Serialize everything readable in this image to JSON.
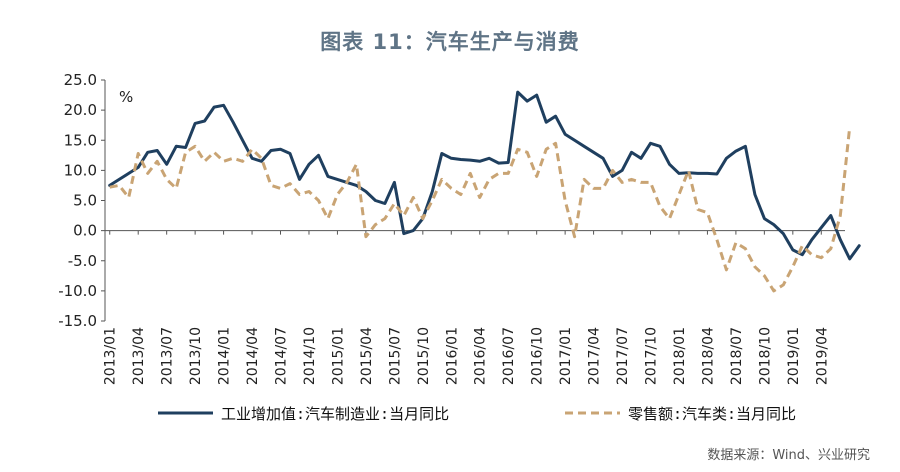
{
  "title": "图表 11：汽车生产与消费",
  "source": "数据来源：Wind、兴业研究",
  "chart_data": {
    "type": "line",
    "unit_label": "%",
    "ylim": [
      -15,
      25
    ],
    "yticks": [
      "25.0",
      "20.0",
      "15.0",
      "10.0",
      "5.0",
      "0.0",
      "-5.0",
      "-10.0",
      "-15.0"
    ],
    "xtick_labels": [
      "2013/01",
      "2013/04",
      "2013/07",
      "2013/10",
      "2014/01",
      "2014/04",
      "2014/07",
      "2014/10",
      "2015/01",
      "2015/04",
      "2015/07",
      "2015/10",
      "2016/01",
      "2016/04",
      "2016/07",
      "2016/10",
      "2017/01",
      "2017/04",
      "2017/07",
      "2017/10",
      "2018/01",
      "2018/04",
      "2018/07",
      "2018/10",
      "2019/01",
      "2019/04"
    ],
    "x_start": "2013/01",
    "x_end": "2019/06",
    "legend_placement": "bottom",
    "series": [
      {
        "name": "工业增加值:汽车制造业:当月同比",
        "color": "#1f3f5f",
        "style": "solid",
        "values": [
          7.5,
          8.5,
          9.5,
          10.5,
          13.0,
          13.3,
          11.0,
          14.0,
          13.8,
          17.8,
          18.2,
          20.5,
          20.8,
          18.0,
          15.0,
          12.0,
          11.5,
          13.3,
          13.5,
          12.8,
          8.5,
          11.0,
          12.5,
          9.0,
          8.5,
          8.0,
          7.5,
          6.5,
          5.0,
          4.5,
          8.0,
          -0.5,
          0.0,
          2.0,
          6.5,
          12.8,
          12.0,
          11.8,
          11.7,
          11.5,
          12.0,
          11.2,
          11.3,
          23.0,
          21.5,
          22.5,
          18.0,
          19.0,
          16.0,
          15.0,
          14.0,
          13.0,
          12.0,
          9.0,
          10.0,
          13.0,
          12.0,
          14.5,
          14.0,
          11.0,
          9.5,
          9.6,
          9.5,
          9.5,
          9.4,
          12.0,
          13.2,
          14.0,
          6.0,
          2.0,
          1.0,
          -0.5,
          -3.2,
          -4.0,
          -1.5,
          0.5,
          2.5,
          -1.5,
          -4.7,
          -2.5
        ]
      },
      {
        "name": "零售额:汽车类:当月同比",
        "color": "#c9a474",
        "style": "dashed",
        "values": [
          7.2,
          7.5,
          5.5,
          12.8,
          9.5,
          11.5,
          8.5,
          7.0,
          13.0,
          14.0,
          11.5,
          13.0,
          11.5,
          12.0,
          11.5,
          13.5,
          12.0,
          7.5,
          7.0,
          7.8,
          6.0,
          6.5,
          5.0,
          2.0,
          6.0,
          8.0,
          11.0,
          -1.0,
          1.0,
          2.0,
          4.5,
          2.5,
          5.5,
          2.0,
          5.0,
          8.5,
          7.0,
          6.0,
          9.5,
          5.5,
          8.5,
          9.5,
          9.5,
          13.5,
          13.0,
          9.0,
          13.5,
          14.5,
          5.0,
          -1.0,
          8.5,
          7.0,
          7.0,
          10.0,
          8.0,
          8.5,
          8.0,
          8.0,
          4.0,
          2.0,
          6.0,
          10.0,
          3.5,
          3.0,
          -1.5,
          -6.5,
          -2.0,
          -3.0,
          -6.0,
          -7.5,
          -10.0,
          -9.0,
          -6.0,
          -2.5,
          -4.0,
          -4.5,
          -3.0,
          2.5,
          17.2
        ]
      }
    ]
  }
}
